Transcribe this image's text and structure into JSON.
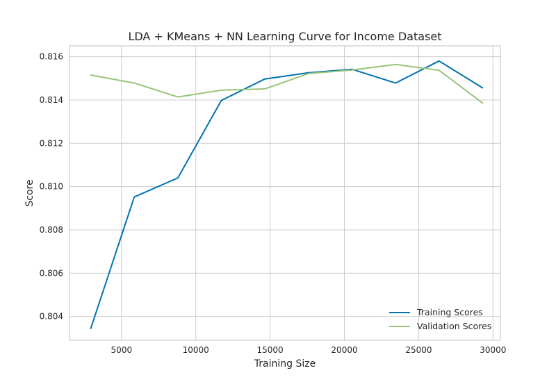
{
  "chart_data": {
    "type": "line",
    "title": "LDA + KMeans + NN Learning Curve for Income Dataset",
    "xlabel": "Training Size",
    "ylabel": "Score",
    "xlim": [
      1500,
      30500
    ],
    "ylim": [
      0.8029,
      0.8165
    ],
    "x_ticks": [
      5000,
      10000,
      15000,
      20000,
      25000,
      30000
    ],
    "x_tick_labels": [
      "5000",
      "10000",
      "15000",
      "20000",
      "25000",
      "30000"
    ],
    "y_ticks": [
      0.804,
      0.806,
      0.808,
      0.81,
      0.812,
      0.814,
      0.816
    ],
    "y_tick_labels": [
      "0.804",
      "0.806",
      "0.808",
      "0.810",
      "0.812",
      "0.814",
      "0.816"
    ],
    "grid": true,
    "legend_position": "lower-right",
    "x": [
      2930,
      5860,
      8790,
      11720,
      14650,
      17580,
      20510,
      23440,
      26370,
      29300
    ],
    "series": [
      {
        "name": "Training Scores",
        "color": "#0072b2",
        "values": [
          0.80345,
          0.80952,
          0.8104,
          0.81398,
          0.81497,
          0.81526,
          0.81542,
          0.81478,
          0.8158,
          0.81456
        ]
      },
      {
        "name": "Validation Scores",
        "color": "#99c47a",
        "values": [
          0.81515,
          0.81478,
          0.81414,
          0.81445,
          0.81451,
          0.81522,
          0.81538,
          0.81564,
          0.81537,
          0.81386
        ]
      }
    ]
  }
}
